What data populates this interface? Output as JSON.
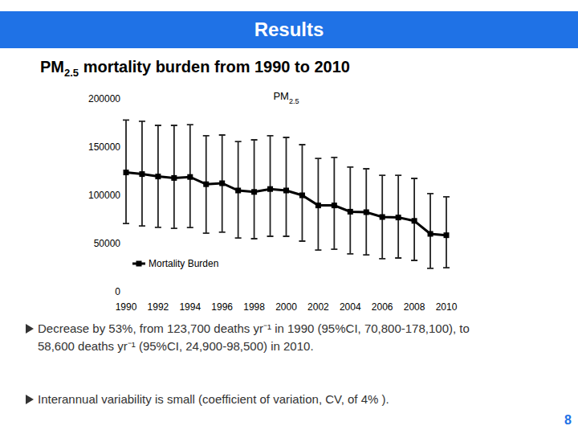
{
  "header": {
    "title": "Results"
  },
  "heading": "PM2.5 mortality burden from 1990 to 2010",
  "chart_data": {
    "type": "line",
    "title": "PM2.5",
    "categories": [
      "1990",
      null,
      "1992",
      null,
      "1994",
      null,
      "1996",
      null,
      "1998",
      null,
      "2000",
      null,
      "2002",
      null,
      "2004",
      null,
      "2006",
      null,
      "2008",
      null,
      "2010"
    ],
    "series": [
      {
        "name": "Mortality Burden",
        "color": "#000000",
        "marker": "square",
        "values": [
          123700,
          122000,
          119500,
          118000,
          119000,
          111500,
          112500,
          105000,
          103500,
          106500,
          105000,
          100000,
          89500,
          89500,
          83000,
          82500,
          77500,
          77000,
          73500,
          60000,
          58600
        ],
        "lower": [
          70800,
          68300,
          66700,
          65800,
          66500,
          60800,
          61700,
          55800,
          55000,
          57500,
          57500,
          52500,
          43300,
          44000,
          39200,
          38300,
          34200,
          35000,
          32500,
          24200,
          24900
        ],
        "upper": [
          178100,
          176700,
          172500,
          172500,
          173300,
          161700,
          162500,
          155800,
          157500,
          161700,
          160000,
          152500,
          138300,
          139200,
          129200,
          127500,
          120800,
          120800,
          117500,
          101700,
          98500
        ]
      }
    ],
    "ylim": [
      0,
      200000
    ],
    "yticks": [
      0,
      50000,
      100000,
      150000,
      200000
    ],
    "grid": false,
    "legend": "bottom-left"
  },
  "bullets": [
    "Decrease by 53%, from 123,700 deaths yr⁻¹ in 1990 (95%CI, 70,800-178,100), to 58,600 deaths yr⁻¹ (95%CI, 24,900-98,500) in 2010.",
    "Interannual variability is small (coefficient of variation, CV, of 4% )."
  ],
  "page_number": 8
}
